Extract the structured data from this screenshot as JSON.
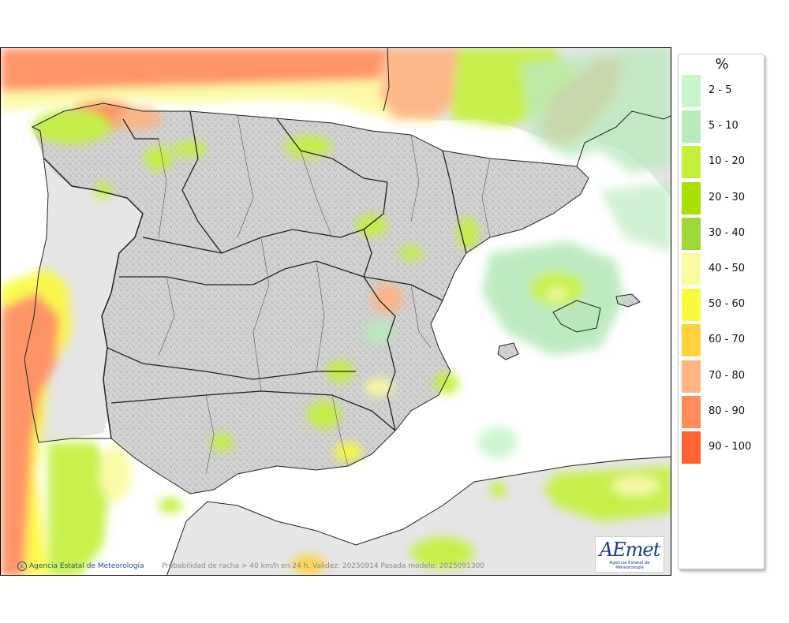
{
  "legend": {
    "title": "%",
    "items": [
      {
        "label": "2 - 5",
        "color": "#c8f5cc"
      },
      {
        "label": "5 - 10",
        "color": "#b8eabc"
      },
      {
        "label": "10 - 20",
        "color": "#c4f03c"
      },
      {
        "label": "20 - 30",
        "color": "#a8e000"
      },
      {
        "label": "30 - 40",
        "color": "#a0d838"
      },
      {
        "label": "40 - 50",
        "color": "#fafaa0"
      },
      {
        "label": "50 - 60",
        "color": "#fafa3c"
      },
      {
        "label": "60 - 70",
        "color": "#ffd23c"
      },
      {
        "label": "70 - 80",
        "color": "#ffb482"
      },
      {
        "label": "80 - 90",
        "color": "#ff8c5a"
      },
      {
        "label": "90 - 100",
        "color": "#ff6432"
      }
    ]
  },
  "footer": {
    "credit": "Agencia Estatal de Meteorología",
    "copyright_symbol": "c",
    "info": "Probabilidad de racha > 40 km/h en 24 h. Validez: 20250914 Pasada modelo: 2025091300"
  },
  "logo": {
    "word": "AEmet",
    "subtitle": "Agencia Estatal de Meteorología"
  },
  "colors": {
    "sea": "#ffffff",
    "land": "#d2d2d2",
    "border": "#222222"
  }
}
